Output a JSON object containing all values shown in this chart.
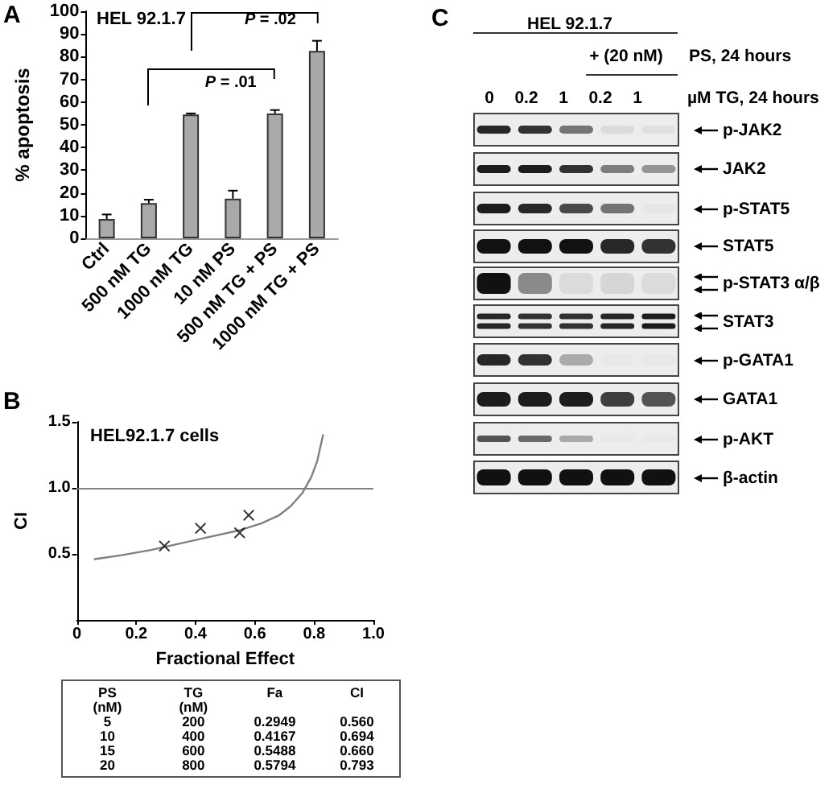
{
  "chart_data": [
    {
      "type": "bar",
      "categories": [
        "Ctrl",
        "500 nM TG",
        "1000 nM TG",
        "10 nM PS",
        "500 nM TG + PS",
        "1000 nM TG + PS"
      ],
      "values": [
        8.5,
        15.5,
        54.5,
        17.5,
        55,
        82.5
      ],
      "color": "#a9a9a9",
      "errors": [
        [
          8.5,
          10.5
        ],
        [
          15.5,
          17
        ],
        [
          54.5,
          55
        ],
        [
          17.5,
          21
        ],
        [
          55,
          56.5
        ],
        [
          82.5,
          87
        ]
      ],
      "ylabel": "% apoptosis",
      "ylim": [
        0,
        100
      ],
      "yticks": [
        0,
        10,
        20,
        30,
        40,
        50,
        60,
        70,
        80,
        90,
        100
      ],
      "annotations": [
        "A",
        "HEL 92.1.7",
        "P = .01",
        "P = .02"
      ]
    },
    {
      "type": "scatter",
      "series": [
        {
          "type": "line",
          "x": [
            0.06,
            0.15,
            0.25,
            0.35,
            0.45,
            0.55,
            0.62,
            0.68,
            0.72,
            0.76,
            0.79,
            0.81,
            0.83
          ],
          "values": [
            0.46,
            0.49,
            0.53,
            0.58,
            0.63,
            0.68,
            0.73,
            0.79,
            0.86,
            0.96,
            1.08,
            1.2,
            1.4
          ],
          "color": "#808080",
          "marker": "none"
        },
        {
          "type": "scatter",
          "x": [
            0.2949,
            0.4167,
            0.5488,
            0.5794
          ],
          "values": [
            0.56,
            0.694,
            0.66,
            0.793
          ],
          "color": "#000000",
          "marker": "cross"
        }
      ],
      "xlabel": "Fractional Effect",
      "ylabel": "CI",
      "xlim": [
        0,
        1
      ],
      "xticks": [
        0,
        0.2,
        0.4,
        0.6,
        0.8,
        {
          "value": 1,
          "label": "1.0"
        }
      ],
      "ylim": [
        0,
        1.5
      ],
      "yticks": [
        0.5,
        {
          "value": 1,
          "label": "1.0"
        },
        1.5
      ],
      "ref_lines": [
        {
          "axis": "y",
          "value": 1,
          "color": "#808080"
        }
      ],
      "annotations": [
        "B",
        "HEL92.1.7 cells",
        "PS (nM)",
        "TG (nM)",
        "Fa",
        "CI",
        "5",
        "200",
        "0.2949",
        "0.560",
        "10",
        "400",
        "0.4167",
        "0.694",
        "15",
        "600",
        "0.5488",
        "0.660",
        "20",
        "800",
        "0.5794",
        "0.793"
      ]
    },
    {
      "type": "other",
      "annotations": [
        "C",
        "HEL 92.1.7",
        "+ (20 nM)",
        "PS, 24 hours",
        "0",
        "0.2",
        "1",
        "0.2",
        "1",
        "µM TG, 24 hours",
        "p-JAK2",
        "JAK2",
        "p-STAT5",
        "STAT5",
        "p-STAT3 α/β",
        "STAT3",
        "p-GATA1",
        "GATA1",
        "p-AKT",
        "β-actin"
      ]
    }
  ]
}
